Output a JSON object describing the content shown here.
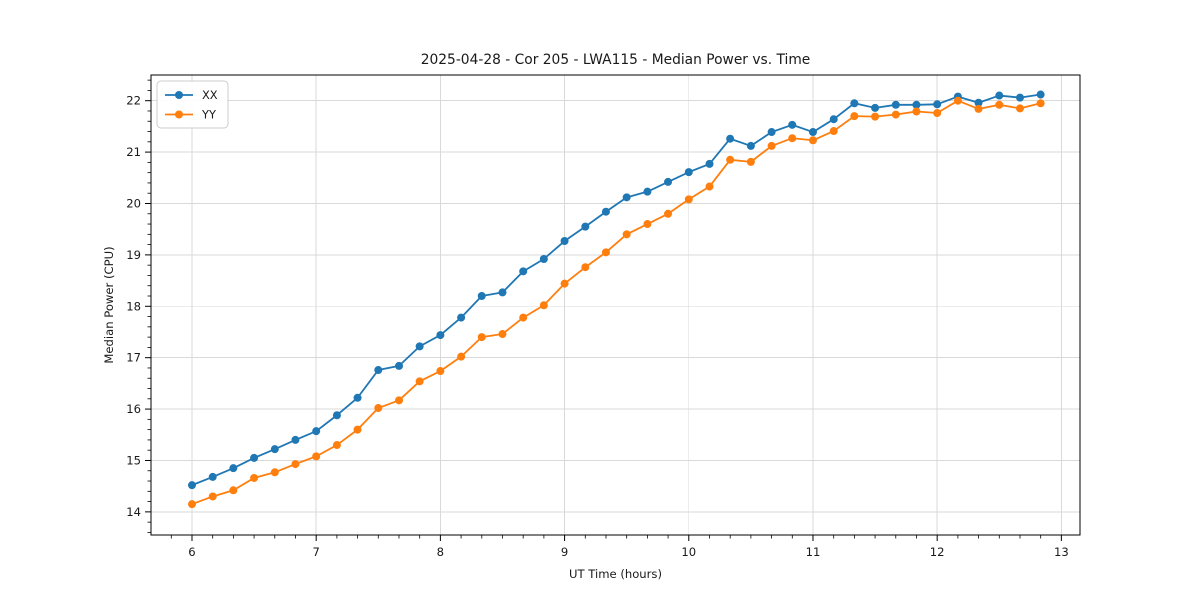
{
  "figure": {
    "background": "#ffffff",
    "spine_color": "#000000",
    "text_color": "#1a1a1a"
  },
  "chart_data": {
    "type": "line",
    "title": "2025-04-28 - Cor 205 - LWA115 - Median Power vs. Time",
    "xlabel": "UT Time (hours)",
    "ylabel": "Median Power (CPU)",
    "xlim": [
      5.67,
      13.15
    ],
    "ylim": [
      13.55,
      22.5
    ],
    "x_ticks": [
      6,
      7,
      8,
      9,
      10,
      11,
      12,
      13
    ],
    "y_ticks": [
      14,
      15,
      16,
      17,
      18,
      19,
      20,
      21,
      22
    ],
    "x_minor_step": 0.16667,
    "y_minor_step": 0.2,
    "grid": true,
    "grid_color": "#d9d9d9",
    "legend_position": "upper left",
    "legend_entries": [
      "XX",
      "YY"
    ],
    "x": [
      6.0,
      6.167,
      6.333,
      6.5,
      6.667,
      6.833,
      7.0,
      7.167,
      7.333,
      7.5,
      7.667,
      7.833,
      8.0,
      8.167,
      8.333,
      8.5,
      8.667,
      8.833,
      9.0,
      9.167,
      9.333,
      9.5,
      9.667,
      9.833,
      10.0,
      10.167,
      10.333,
      10.5,
      10.667,
      10.833,
      11.0,
      11.167,
      11.333,
      11.5,
      11.667,
      11.833,
      12.0,
      12.167,
      12.333,
      12.5,
      12.667,
      12.833
    ],
    "series": [
      {
        "name": "XX",
        "color": "#1f77b4",
        "marker": "circle",
        "values": [
          14.52,
          14.68,
          14.85,
          15.05,
          15.22,
          15.4,
          15.57,
          15.88,
          16.22,
          16.76,
          16.84,
          17.22,
          17.44,
          17.78,
          18.2,
          18.27,
          18.68,
          18.92,
          19.27,
          19.55,
          19.84,
          20.12,
          20.23,
          20.42,
          20.61,
          20.77,
          21.26,
          21.12,
          21.39,
          21.53,
          21.39,
          21.64,
          21.95,
          21.86,
          21.92,
          21.92,
          21.93,
          22.08,
          21.96,
          22.1,
          22.06,
          22.12
        ]
      },
      {
        "name": "YY",
        "color": "#ff7f0e",
        "marker": "circle",
        "values": [
          14.15,
          14.3,
          14.42,
          14.66,
          14.77,
          14.93,
          15.08,
          15.3,
          15.6,
          16.02,
          16.17,
          16.54,
          16.74,
          17.02,
          17.4,
          17.46,
          17.78,
          18.02,
          18.44,
          18.76,
          19.05,
          19.4,
          19.6,
          19.8,
          20.08,
          20.33,
          20.85,
          20.81,
          21.12,
          21.27,
          21.23,
          21.41,
          21.7,
          21.69,
          21.73,
          21.79,
          21.76,
          22.0,
          21.84,
          21.92,
          21.85,
          21.95
        ]
      }
    ]
  }
}
